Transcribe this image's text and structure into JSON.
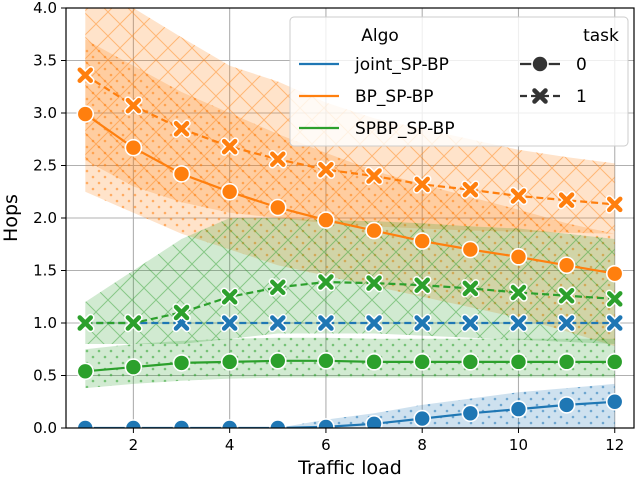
{
  "chart_data": {
    "type": "line",
    "xlabel": "Traffic load",
    "ylabel": "Hops",
    "xlim": [
      0.6,
      12.4
    ],
    "ylim": [
      0.0,
      4.0
    ],
    "xticks": [
      2,
      4,
      6,
      8,
      10,
      12
    ],
    "yticks": [
      0.0,
      0.5,
      1.0,
      1.5,
      2.0,
      2.5,
      3.0,
      3.5,
      4.0
    ],
    "grid": true,
    "legend_position": "top-right",
    "legend": {
      "algo_title": "Algo",
      "task_title": "task",
      "algos": [
        "joint_SP-BP",
        "BP_SP-BP",
        "SPBP_SP-BP"
      ],
      "tasks": [
        "0",
        "1"
      ]
    },
    "colors": {
      "joint_SP-BP": "#1f77b4",
      "BP_SP-BP": "#ff7f0e",
      "SPBP_SP-BP": "#2ca02c"
    },
    "x": [
      1,
      2,
      3,
      4,
      5,
      6,
      7,
      8,
      9,
      10,
      11,
      12
    ],
    "series": [
      {
        "algo": "joint_SP-BP",
        "task": "0",
        "values": [
          0.0,
          0.0,
          0.0,
          0.0,
          0.0,
          0.01,
          0.04,
          0.09,
          0.14,
          0.18,
          0.22,
          0.25
        ],
        "lower": [
          0.0,
          0.0,
          0.0,
          0.0,
          0.0,
          0.0,
          0.0,
          0.0,
          0.0,
          0.0,
          0.0,
          0.0
        ],
        "upper": [
          0.0,
          0.0,
          0.0,
          0.0,
          0.0,
          0.08,
          0.14,
          0.22,
          0.28,
          0.34,
          0.38,
          0.42
        ]
      },
      {
        "algo": "joint_SP-BP",
        "task": "1",
        "values": [
          1.0,
          1.0,
          1.0,
          1.0,
          1.0,
          1.0,
          1.0,
          1.0,
          1.0,
          1.0,
          1.0,
          1.0
        ],
        "lower": [
          1.0,
          1.0,
          1.0,
          1.0,
          1.0,
          1.0,
          1.0,
          1.0,
          1.0,
          1.0,
          1.0,
          1.0
        ],
        "upper": [
          1.0,
          1.0,
          1.0,
          1.0,
          1.0,
          1.0,
          1.0,
          1.0,
          1.0,
          1.0,
          1.0,
          1.0
        ]
      },
      {
        "algo": "BP_SP-BP",
        "task": "0",
        "values": [
          2.99,
          2.67,
          2.42,
          2.25,
          2.1,
          1.98,
          1.88,
          1.78,
          1.7,
          1.63,
          1.55,
          1.47
        ],
        "lower": [
          2.25,
          2.05,
          1.85,
          1.7,
          1.55,
          1.45,
          1.35,
          1.25,
          1.15,
          1.05,
          0.92,
          0.78
        ],
        "upper": [
          3.7,
          3.45,
          3.2,
          3.0,
          2.8,
          2.62,
          2.45,
          2.32,
          2.2,
          2.08,
          1.95,
          1.85
        ]
      },
      {
        "algo": "BP_SP-BP",
        "task": "1",
        "values": [
          3.36,
          3.07,
          2.85,
          2.68,
          2.56,
          2.46,
          2.4,
          2.32,
          2.27,
          2.21,
          2.17,
          2.13
        ],
        "lower": [
          2.55,
          2.3,
          2.15,
          2.05,
          2.0,
          1.95,
          1.92,
          1.9,
          1.88,
          1.87,
          1.86,
          1.85
        ],
        "upper": [
          4.0,
          4.0,
          3.72,
          3.45,
          3.3,
          3.1,
          2.95,
          2.85,
          2.75,
          2.65,
          2.58,
          2.52
        ]
      },
      {
        "algo": "SPBP_SP-BP",
        "task": "0",
        "values": [
          0.54,
          0.58,
          0.62,
          0.63,
          0.64,
          0.64,
          0.63,
          0.63,
          0.63,
          0.63,
          0.63,
          0.63
        ],
        "lower": [
          0.38,
          0.42,
          0.45,
          0.47,
          0.48,
          0.48,
          0.48,
          0.48,
          0.48,
          0.48,
          0.48,
          0.48
        ],
        "upper": [
          0.75,
          0.8,
          0.83,
          0.85,
          0.86,
          0.86,
          0.85,
          0.85,
          0.85,
          0.85,
          0.85,
          0.85
        ]
      },
      {
        "algo": "SPBP_SP-BP",
        "task": "1",
        "values": [
          1.0,
          1.0,
          1.1,
          1.25,
          1.34,
          1.39,
          1.38,
          1.36,
          1.33,
          1.29,
          1.26,
          1.23
        ],
        "lower": [
          0.8,
          0.8,
          0.8,
          0.85,
          0.9,
          0.9,
          0.9,
          0.88,
          0.86,
          0.84,
          0.82,
          0.8
        ],
        "upper": [
          1.2,
          1.5,
          1.8,
          2.0,
          2.0,
          1.98,
          1.97,
          1.95,
          1.92,
          1.9,
          1.85,
          1.8
        ]
      }
    ]
  }
}
